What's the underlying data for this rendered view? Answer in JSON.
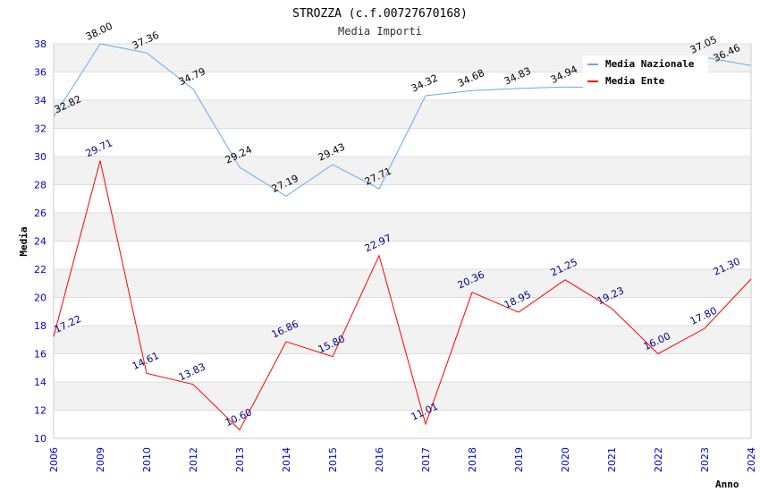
{
  "chart_data": {
    "type": "line",
    "title": "STROZZA (c.f.00727670168)",
    "subtitle": "Media Importi",
    "xlabel": "Anno",
    "ylabel": "Media",
    "ylim": [
      10,
      38
    ],
    "yticks": [
      "10",
      "12",
      "14",
      "16",
      "18",
      "20",
      "22",
      "24",
      "26",
      "28",
      "30",
      "32",
      "34",
      "36",
      "38"
    ],
    "categories": [
      "2006",
      "2009",
      "2010",
      "2012",
      "2013",
      "2014",
      "2015",
      "2016",
      "2017",
      "2018",
      "2019",
      "2020",
      "2021",
      "2022",
      "2023",
      "2024"
    ],
    "series": [
      {
        "name": "Media Nazionale",
        "color": "#66aaee",
        "label_color": "#000000",
        "values": [
          32.82,
          38.0,
          37.36,
          34.79,
          29.24,
          27.19,
          29.43,
          27.71,
          34.32,
          34.68,
          34.83,
          34.94,
          34.85,
          35.9,
          37.05,
          36.46
        ],
        "labels": [
          "32.82",
          "38.00",
          "37.36",
          "34.79",
          "29.24",
          "27.19",
          "29.43",
          "27.71",
          "34.32",
          "34.68",
          "34.83",
          "34.94",
          "",
          "",
          "37.05",
          "36.46"
        ]
      },
      {
        "name": "Media Ente",
        "color": "#ff0000",
        "label_color": "#000080",
        "values": [
          17.22,
          29.71,
          14.61,
          13.83,
          10.6,
          16.86,
          15.8,
          22.97,
          11.01,
          20.36,
          18.95,
          21.25,
          19.23,
          16.0,
          17.8,
          21.3
        ],
        "labels": [
          "17.22",
          "29.71",
          "14.61",
          "13.83",
          "10.60",
          "16.86",
          "15.80",
          "22.97",
          "11.01",
          "20.36",
          "18.95",
          "21.25",
          "19.23",
          "16.00",
          "17.80",
          "21.30"
        ]
      }
    ],
    "grid": true,
    "legend": "top-right"
  }
}
